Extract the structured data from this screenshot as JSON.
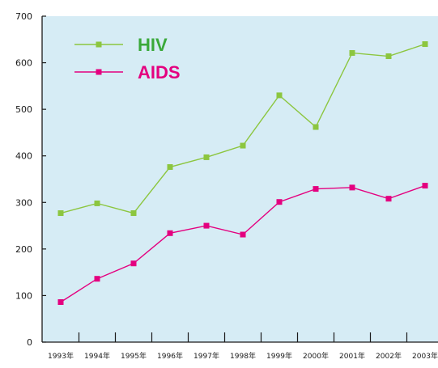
{
  "chart_data": {
    "type": "line",
    "title": "",
    "xlabel": "",
    "ylabel": "",
    "categories": [
      "1993年",
      "1994年",
      "1995年",
      "1996年",
      "1997年",
      "1998年",
      "1999年",
      "2000年",
      "2001年",
      "2002年",
      "2003年"
    ],
    "ylim": [
      0,
      700
    ],
    "yticks": [
      0,
      100,
      200,
      300,
      400,
      500,
      600,
      700
    ],
    "grid": false,
    "legend_position": "top-left",
    "background": "#d6ecf5",
    "series": [
      {
        "name": "HIV",
        "color": "#8cc63f",
        "label_color": "#3aa93a",
        "values": [
          277,
          298,
          277,
          376,
          397,
          422,
          530,
          462,
          621,
          614,
          640
        ]
      },
      {
        "name": "AIDS",
        "color": "#e4007f",
        "label_color": "#e4007f",
        "values": [
          86,
          136,
          169,
          234,
          250,
          231,
          301,
          329,
          332,
          308,
          336
        ]
      }
    ]
  }
}
